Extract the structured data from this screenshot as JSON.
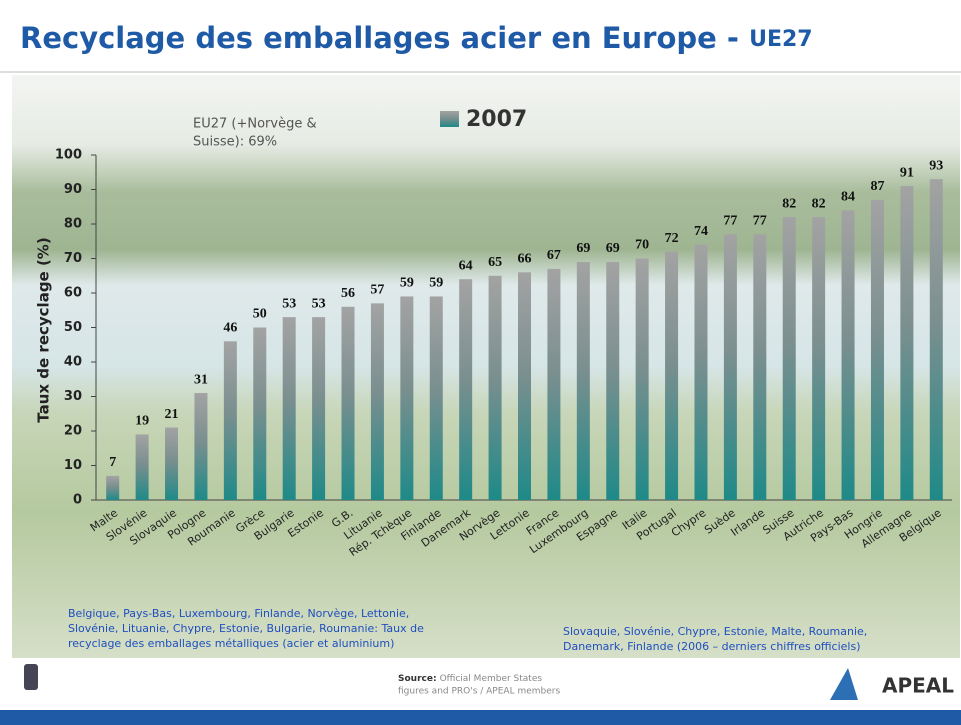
{
  "chart_data": {
    "type": "bar",
    "title": "Recyclage des emballages acier en Europe - ",
    "title_suffix": "UE27",
    "annotation": [
      "EU27 (+Norvège &",
      "Suisse): 69%"
    ],
    "y_label": "Taux de recyclage  (%)",
    "categories": [
      "Malte",
      "Slovénie",
      "Slovaquie",
      "Pologne",
      "Roumanie",
      "Grèce",
      "Bulgarie",
      "Estonie",
      "G.B.",
      "Lituanie",
      "Rép. Tchèque",
      "Finlande",
      "Danemark",
      "Norvège",
      "Lettonie",
      "France",
      "Luxembourg",
      "Espagne",
      "Italie",
      "Portugal",
      "Chypre",
      "Suède",
      "Irlande",
      "Suisse",
      "Autriche",
      "Pays-Bas",
      "Hongrie",
      "Allemagne",
      "Belgique"
    ],
    "series": [
      {
        "name": "2007",
        "color": "#1e8a88",
        "values": [
          7,
          19,
          21,
          31,
          46,
          50,
          53,
          53,
          56,
          57,
          59,
          59,
          64,
          65,
          66,
          67,
          69,
          69,
          70,
          72,
          74,
          77,
          77,
          82,
          82,
          84,
          87,
          91,
          93
        ]
      }
    ],
    "ylim": [
      0,
      100
    ],
    "yticks": [
      0,
      10,
      20,
      30,
      40,
      50,
      60,
      70,
      80,
      90,
      100
    ],
    "notes_left": [
      "Belgique, Pays-Bas, Luxembourg, Finlande, Norvège, Lettonie,",
      "Slovénie, Lituanie, Chypre, Estonie, Bulgarie, Roumanie: Taux de",
      "recyclage des emballages métalliques (acier et aluminium)"
    ],
    "notes_right": [
      "Slovaquie, Slovénie, Chypre, Estonie, Malte,  Roumanie,",
      "Danemark, Finlande (2006 – derniers chiffres officiels)"
    ],
    "source_label": "Source:",
    "source": [
      "Official Member States",
      "figures and PRO's / APEAL members"
    ],
    "logo": "APEAL"
  }
}
